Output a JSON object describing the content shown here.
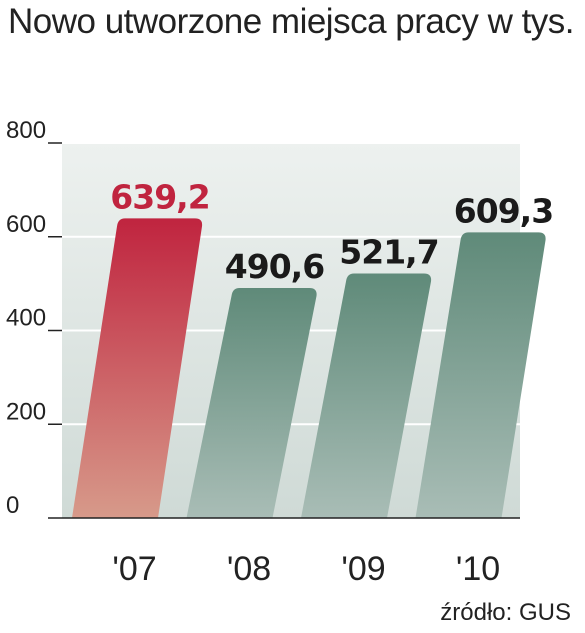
{
  "title": "Nowo utworzone miejsca pracy w tys.",
  "source": "źródło: GUS",
  "colors": {
    "highlight_top": "#c0243f",
    "highlight_bottom": "#d79a8a",
    "normal_top": "#5f8a79",
    "normal_bottom": "#a9bdb6",
    "highlight_label": "#c0243f",
    "normal_label": "#1a1a1a",
    "panel": "#e9eeec",
    "axis": "#222222"
  },
  "chart_data": {
    "type": "bar",
    "title": "Nowo utworzone miejsca pracy w tys.",
    "categories": [
      "'07",
      "'08",
      "'09",
      "'10"
    ],
    "values": [
      639.2,
      490.6,
      521.7,
      609.3
    ],
    "value_labels": [
      "639,2",
      "490,6",
      "521,7",
      "609,3"
    ],
    "highlight": [
      true,
      false,
      false,
      false
    ],
    "y_ticks": [
      0,
      200,
      400,
      600,
      800
    ],
    "ylim": [
      0,
      800
    ],
    "grid": true,
    "xlabel": "",
    "ylabel": ""
  }
}
